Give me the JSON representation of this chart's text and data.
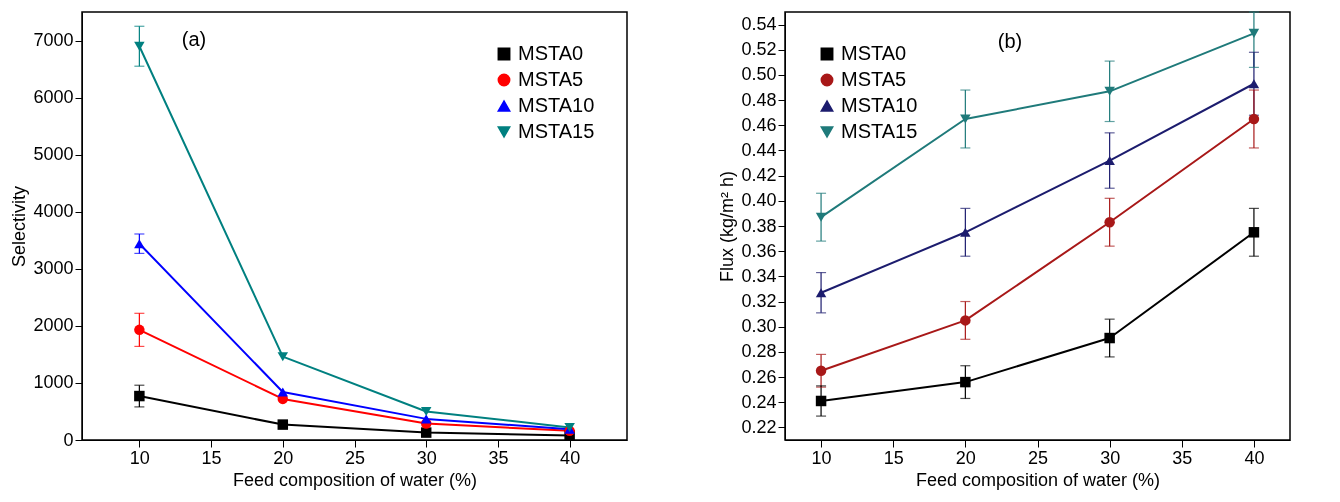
{
  "chart_data": [
    {
      "type": "line",
      "xlabel": "Feed composition of water (%)",
      "ylabel": "Selectivity",
      "annotations": [
        "(a)"
      ],
      "x": [
        10,
        20,
        30,
        40
      ],
      "xlim": [
        6,
        44
      ],
      "xticks": [
        10,
        15,
        20,
        25,
        30,
        35,
        40
      ],
      "ylim": [
        0,
        7500
      ],
      "yticks": [
        0,
        1000,
        2000,
        3000,
        4000,
        5000,
        6000,
        7000
      ],
      "grid": false,
      "legend": "top right",
      "series": [
        {
          "name": "MSTA0",
          "color": "#000000",
          "marker": "square",
          "values": [
            770,
            270,
            130,
            80
          ],
          "errors": [
            190,
            null,
            null,
            null
          ]
        },
        {
          "name": "MSTA5",
          "color": "#ff0000",
          "marker": "circle",
          "values": [
            1930,
            720,
            290,
            160
          ],
          "errors": [
            290,
            null,
            null,
            null
          ]
        },
        {
          "name": "MSTA10",
          "color": "#0000ff",
          "marker": "triangle",
          "values": [
            3440,
            840,
            370,
            190
          ],
          "errors": [
            170,
            null,
            null,
            null
          ]
        },
        {
          "name": "MSTA15",
          "color": "#008080",
          "marker": "triangle-down",
          "values": [
            6900,
            1460,
            500,
            220
          ],
          "errors": [
            350,
            null,
            null,
            null
          ]
        }
      ]
    },
    {
      "type": "line",
      "xlabel": "Feed composition of water (%)",
      "ylabel": "Flux (kg/m² h)",
      "annotations": [
        "(b)"
      ],
      "x": [
        10,
        20,
        30,
        40
      ],
      "xlim": [
        7.5,
        42.5
      ],
      "xticks": [
        10,
        15,
        20,
        25,
        30,
        35,
        40
      ],
      "ylim": [
        0.21,
        0.55
      ],
      "yticks": [
        0.22,
        0.24,
        0.26,
        0.28,
        {
          "value": 0.3,
          "label": "0.30"
        },
        0.32,
        0.34,
        0.36,
        0.38,
        {
          "value": 0.4,
          "label": "0.40"
        },
        0.42,
        0.44,
        0.46,
        0.48,
        {
          "value": 0.5,
          "label": "0.50"
        },
        0.52,
        0.54
      ],
      "grid": false,
      "legend": "top left",
      "series": [
        {
          "name": "MSTA0",
          "color": "#000000",
          "marker": "square",
          "values": [
            0.241,
            0.256,
            0.291,
            0.375
          ],
          "errors": [
            0.012,
            0.013,
            0.015,
            0.019
          ]
        },
        {
          "name": "MSTA5",
          "color": "#a81818",
          "marker": "circle",
          "values": [
            0.265,
            0.305,
            0.383,
            0.465
          ],
          "errors": [
            0.013,
            0.015,
            0.019,
            0.023
          ]
        },
        {
          "name": "MSTA10",
          "color": "#1c1c6e",
          "marker": "triangle",
          "values": [
            0.327,
            0.375,
            0.432,
            0.493
          ],
          "errors": [
            0.016,
            0.019,
            0.022,
            0.025
          ]
        },
        {
          "name": "MSTA15",
          "color": "#1f7a7a",
          "marker": "triangle-down",
          "values": [
            0.387,
            0.465,
            0.487,
            0.533
          ],
          "errors": [
            0.019,
            0.023,
            0.024,
            [
              0.506,
              0.55
            ]
          ]
        }
      ]
    }
  ]
}
